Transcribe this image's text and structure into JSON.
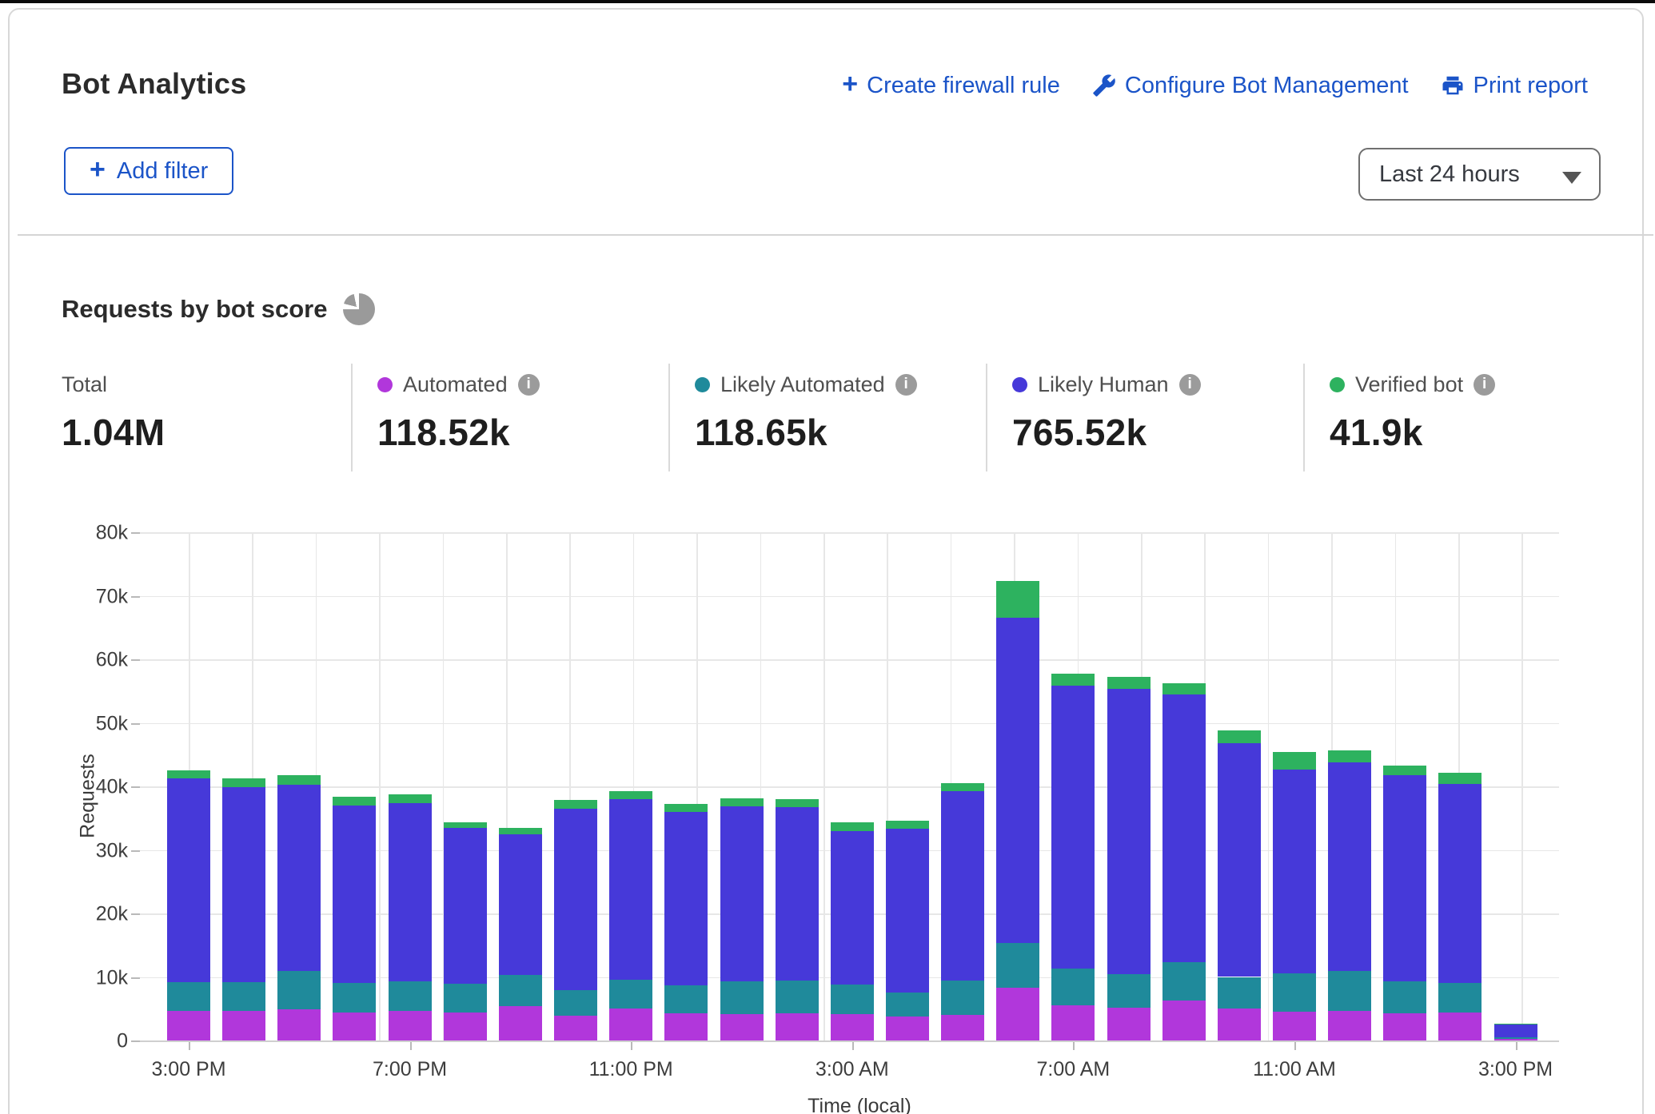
{
  "header": {
    "title": "Bot Analytics",
    "actions": [
      {
        "label": "Create firewall rule",
        "icon": "plus-icon"
      },
      {
        "label": "Configure Bot Management",
        "icon": "wrench-icon"
      },
      {
        "label": "Print report",
        "icon": "printer-icon"
      }
    ],
    "add_filter_label": "Add filter",
    "time_range_value": "Last 24 hours",
    "link_color": "#1b54c8"
  },
  "section": {
    "title": "Requests by bot score"
  },
  "stats": {
    "total": {
      "label": "Total",
      "value": "1.04M"
    },
    "series": [
      {
        "label": "Automated",
        "value": "118.52k",
        "color": "#b137db"
      },
      {
        "label": "Likely Automated",
        "value": "118.65k",
        "color": "#1f8a9b"
      },
      {
        "label": "Likely Human",
        "value": "765.52k",
        "color": "#4639d9"
      },
      {
        "label": "Verified bot",
        "value": "41.9k",
        "color": "#2db25f"
      }
    ]
  },
  "chart_data": {
    "type": "bar",
    "stacked": true,
    "title": "Requests by bot score",
    "xlabel": "Time (local)",
    "ylabel": "Requests",
    "ylim": [
      0,
      80000
    ],
    "ytick_step": 10000,
    "ytick_labels": [
      "0",
      "10k",
      "20k",
      "30k",
      "40k",
      "50k",
      "60k",
      "70k",
      "80k"
    ],
    "grid": true,
    "legend_position": "top-stats-row",
    "categories": [
      "3:00 PM",
      "4:00 PM",
      "5:00 PM",
      "6:00 PM",
      "7:00 PM",
      "8:00 PM",
      "9:00 PM",
      "10:00 PM",
      "11:00 PM",
      "12:00 AM",
      "1:00 AM",
      "2:00 AM",
      "3:00 AM",
      "4:00 AM",
      "5:00 AM",
      "6:00 AM",
      "7:00 AM",
      "8:00 AM",
      "9:00 AM",
      "10:00 AM",
      "11:00 AM",
      "12:00 PM",
      "1:00 PM",
      "2:00 PM",
      "3:00 PM"
    ],
    "x_tick_indices": [
      0,
      4,
      8,
      12,
      16,
      20,
      24
    ],
    "x_tick_labels": [
      "3:00 PM",
      "7:00 PM",
      "11:00 PM",
      "3:00 AM",
      "7:00 AM",
      "11:00 AM",
      "3:00 PM"
    ],
    "series": [
      {
        "name": "Automated",
        "color": "#b137db",
        "values": [
          4600,
          4700,
          4900,
          4400,
          4700,
          4400,
          5400,
          3900,
          5000,
          4300,
          4200,
          4300,
          4200,
          3800,
          4000,
          8300,
          5500,
          5200,
          6300,
          5000,
          4500,
          4600,
          4300,
          4400,
          250
        ]
      },
      {
        "name": "Likely Automated",
        "color": "#1f8a9b",
        "values": [
          4600,
          4500,
          6100,
          4600,
          4600,
          4500,
          4900,
          4000,
          4500,
          4400,
          5100,
          5100,
          4600,
          3800,
          5400,
          7000,
          5800,
          5200,
          6000,
          5000,
          6100,
          6300,
          5000,
          4600,
          300
        ]
      },
      {
        "name": "Likely Human",
        "color": "#4639d9",
        "values": [
          32100,
          30700,
          29200,
          28000,
          28000,
          24500,
          22100,
          28600,
          28500,
          27300,
          27600,
          27300,
          24100,
          25700,
          29800,
          51200,
          44600,
          44900,
          42200,
          36800,
          32000,
          32900,
          32400,
          31400,
          2000
        ]
      },
      {
        "name": "Verified bot",
        "color": "#2db25f",
        "values": [
          1200,
          1300,
          1500,
          1400,
          1400,
          900,
          1100,
          1300,
          1200,
          1200,
          1200,
          1300,
          1500,
          1300,
          1300,
          5800,
          1800,
          1900,
          1700,
          2000,
          2800,
          1800,
          1600,
          1800,
          100
        ]
      }
    ]
  }
}
